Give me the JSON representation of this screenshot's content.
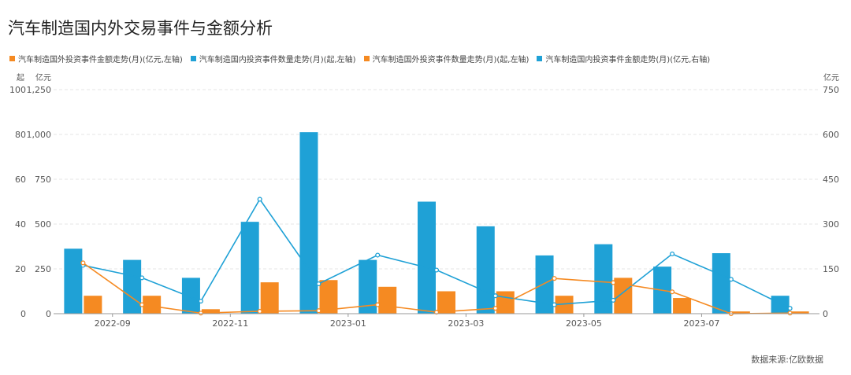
{
  "chart_data": {
    "type": "bar+line",
    "title": "汽车制造国内外交易事件与金额分析",
    "legend": [
      {
        "name": "汽车制造国外投资事件金额走势(月)(亿元,左轴)",
        "color": "#F58A22"
      },
      {
        "name": "汽车制造国内投资事件数量走势(月)(起,左轴)",
        "color": "#1FA1D6"
      },
      {
        "name": "汽车制造国外投资事件数量走势(月)(起,左轴)",
        "color": "#F58A22"
      },
      {
        "name": "汽车制造国内投资事件金额走势(月)(亿元,右轴)",
        "color": "#1FA1D6"
      }
    ],
    "units": {
      "left_count": "起",
      "left_amount": "亿元",
      "right_amount": "亿元"
    },
    "x_tick_labels": [
      "2022-09",
      "2022-11",
      "2023-01",
      "2023-03",
      "2023-05",
      "2023-07"
    ],
    "x_tick_after_index": [
      0,
      2,
      4,
      6,
      8,
      10
    ],
    "left_count_ticks": [
      "100",
      "80",
      "60",
      "40",
      "20",
      "0"
    ],
    "left_amount_ticks": [
      "1,250",
      "1,000",
      "750",
      "500",
      "250",
      "0"
    ],
    "right_amount_ticks": [
      "750",
      "600",
      "450",
      "300",
      "150",
      "0"
    ],
    "left_count_max": 100,
    "right_amount_max": 750,
    "months": 13,
    "bars_domestic_count": [
      29,
      24,
      16,
      41,
      81,
      24,
      50,
      39,
      26,
      31,
      21,
      27,
      8
    ],
    "bars_foreign_count": [
      8,
      8,
      2,
      14,
      15,
      12,
      10,
      10,
      8,
      16,
      7,
      1,
      1
    ],
    "line_domestic_amount": [
      162,
      120,
      42,
      383,
      100,
      196,
      146,
      60,
      30,
      45,
      200,
      115,
      18
    ],
    "line_foreign_amount": [
      170,
      30,
      2,
      8,
      10,
      30,
      5,
      18,
      118,
      104,
      73,
      0,
      2
    ],
    "colors": {
      "blue": "#1FA1D6",
      "orange": "#F58A22",
      "grid": "#e6e6e6"
    }
  },
  "source_text": "数据来源:亿欧数据"
}
